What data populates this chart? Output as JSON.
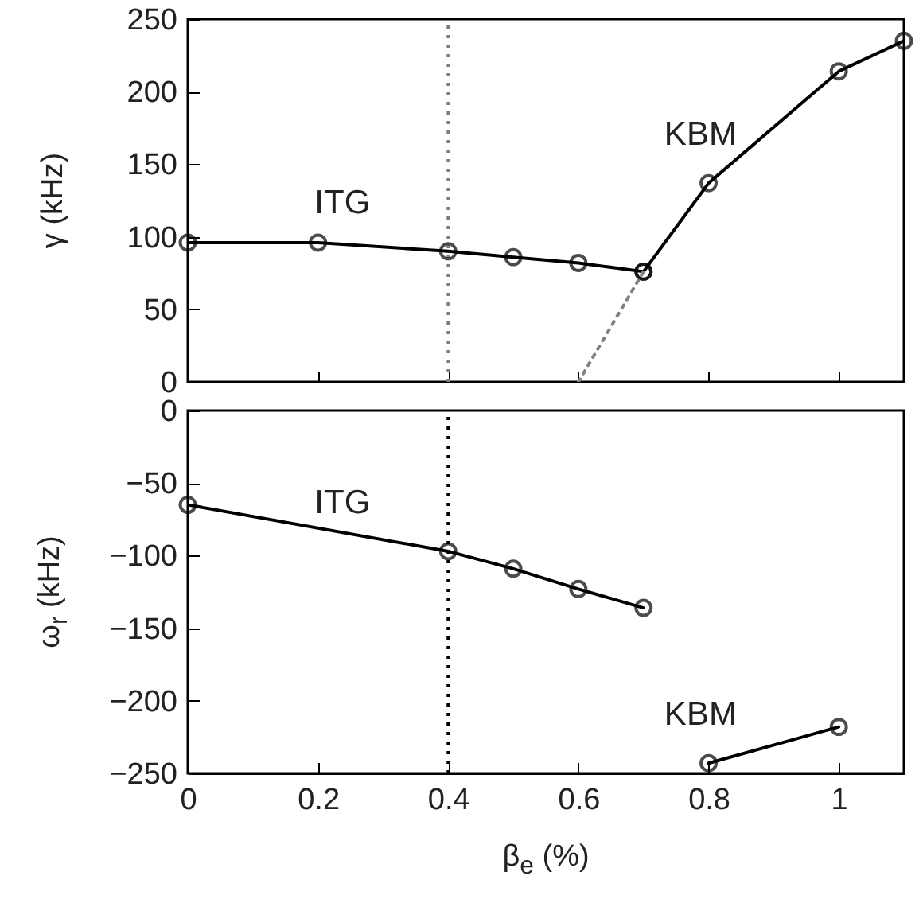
{
  "chart_data": [
    {
      "type": "line",
      "ylabel": "γ (kHz)",
      "xlim": [
        0,
        1.1
      ],
      "xticks": [
        0,
        0.2,
        0.4,
        0.6,
        0.8,
        1
      ],
      "ylim": [
        0,
        250
      ],
      "yticks": [
        0,
        50,
        100,
        150,
        200,
        250
      ],
      "tick_labels": "y",
      "marker": "circle",
      "line_style": "solid",
      "series": [
        {
          "name": "ITG",
          "color": "#000000",
          "x": [
            0,
            0.2,
            0.4,
            0.5,
            0.6,
            0.7
          ],
          "values": [
            96,
            96,
            90,
            86,
            82,
            76
          ]
        },
        {
          "name": "KBM",
          "color": "#000000",
          "x": [
            0.7,
            0.8,
            1,
            1.1
          ],
          "values": [
            76,
            137,
            214,
            235
          ]
        },
        {
          "color": "#808080",
          "x": [
            0.6,
            0.7
          ],
          "values": [
            0,
            76
          ],
          "marker": "none",
          "line_style": "dotted"
        }
      ],
      "ref_lines": [
        {
          "axis": "x",
          "value": 0.4,
          "color": "#808080",
          "line_style": "dotted"
        }
      ]
    },
    {
      "type": "line",
      "xlabel": "β$_{e}$ (%)",
      "ylabel": "ω$_{r}$ (kHz)",
      "xlim": [
        0,
        1.1
      ],
      "xticks": [
        0,
        0.2,
        0.4,
        0.6,
        0.8,
        1
      ],
      "ylim": [
        -250,
        0
      ],
      "yticks": [
        -250,
        -200,
        -150,
        -100,
        -50,
        0
      ],
      "marker": "circle",
      "line_style": "solid",
      "series": [
        {
          "name": "ITG",
          "color": "#000000",
          "x": [
            0,
            0.4,
            0.5,
            0.6,
            0.7
          ],
          "values": [
            -65,
            -97,
            -109,
            -123,
            -136
          ]
        },
        {
          "name": "KBM",
          "color": "#000000",
          "x": [
            0.8,
            1
          ],
          "values": [
            -243,
            -218
          ]
        }
      ],
      "ref_lines": [
        {
          "axis": "x",
          "value": 0.4,
          "color": "#000000",
          "line_style": "dotted"
        }
      ]
    }
  ]
}
